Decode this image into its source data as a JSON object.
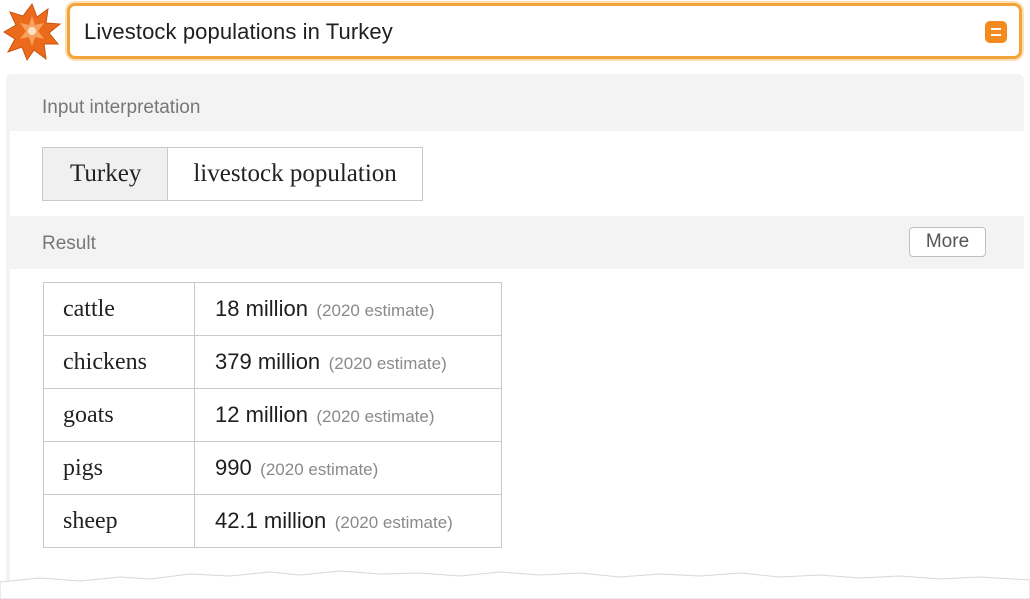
{
  "search": {
    "query": "Livestock populations in Turkey"
  },
  "input_pod": {
    "title": "Input interpretation",
    "cells": [
      "Turkey",
      "livestock population"
    ]
  },
  "result_pod": {
    "title": "Result",
    "more_label": "More",
    "rows": [
      {
        "name": "cattle",
        "value": "18 million",
        "note": "(2020 estimate)"
      },
      {
        "name": "chickens",
        "value": "379 million",
        "note": "(2020 estimate)"
      },
      {
        "name": "goats",
        "value": "12 million",
        "note": "(2020 estimate)"
      },
      {
        "name": "pigs",
        "value": "990",
        "note": "(2020 estimate)"
      },
      {
        "name": "sheep",
        "value": "42.1 million",
        "note": "(2020 estimate)"
      }
    ]
  },
  "colors": {
    "accent": "#f28a1e",
    "search_border": "#f2a33a",
    "pod_background": "#f3f3f3",
    "border": "#c9c9c9"
  },
  "icons": [
    "wolfram-star-logo",
    "equal-sign-icon"
  ]
}
